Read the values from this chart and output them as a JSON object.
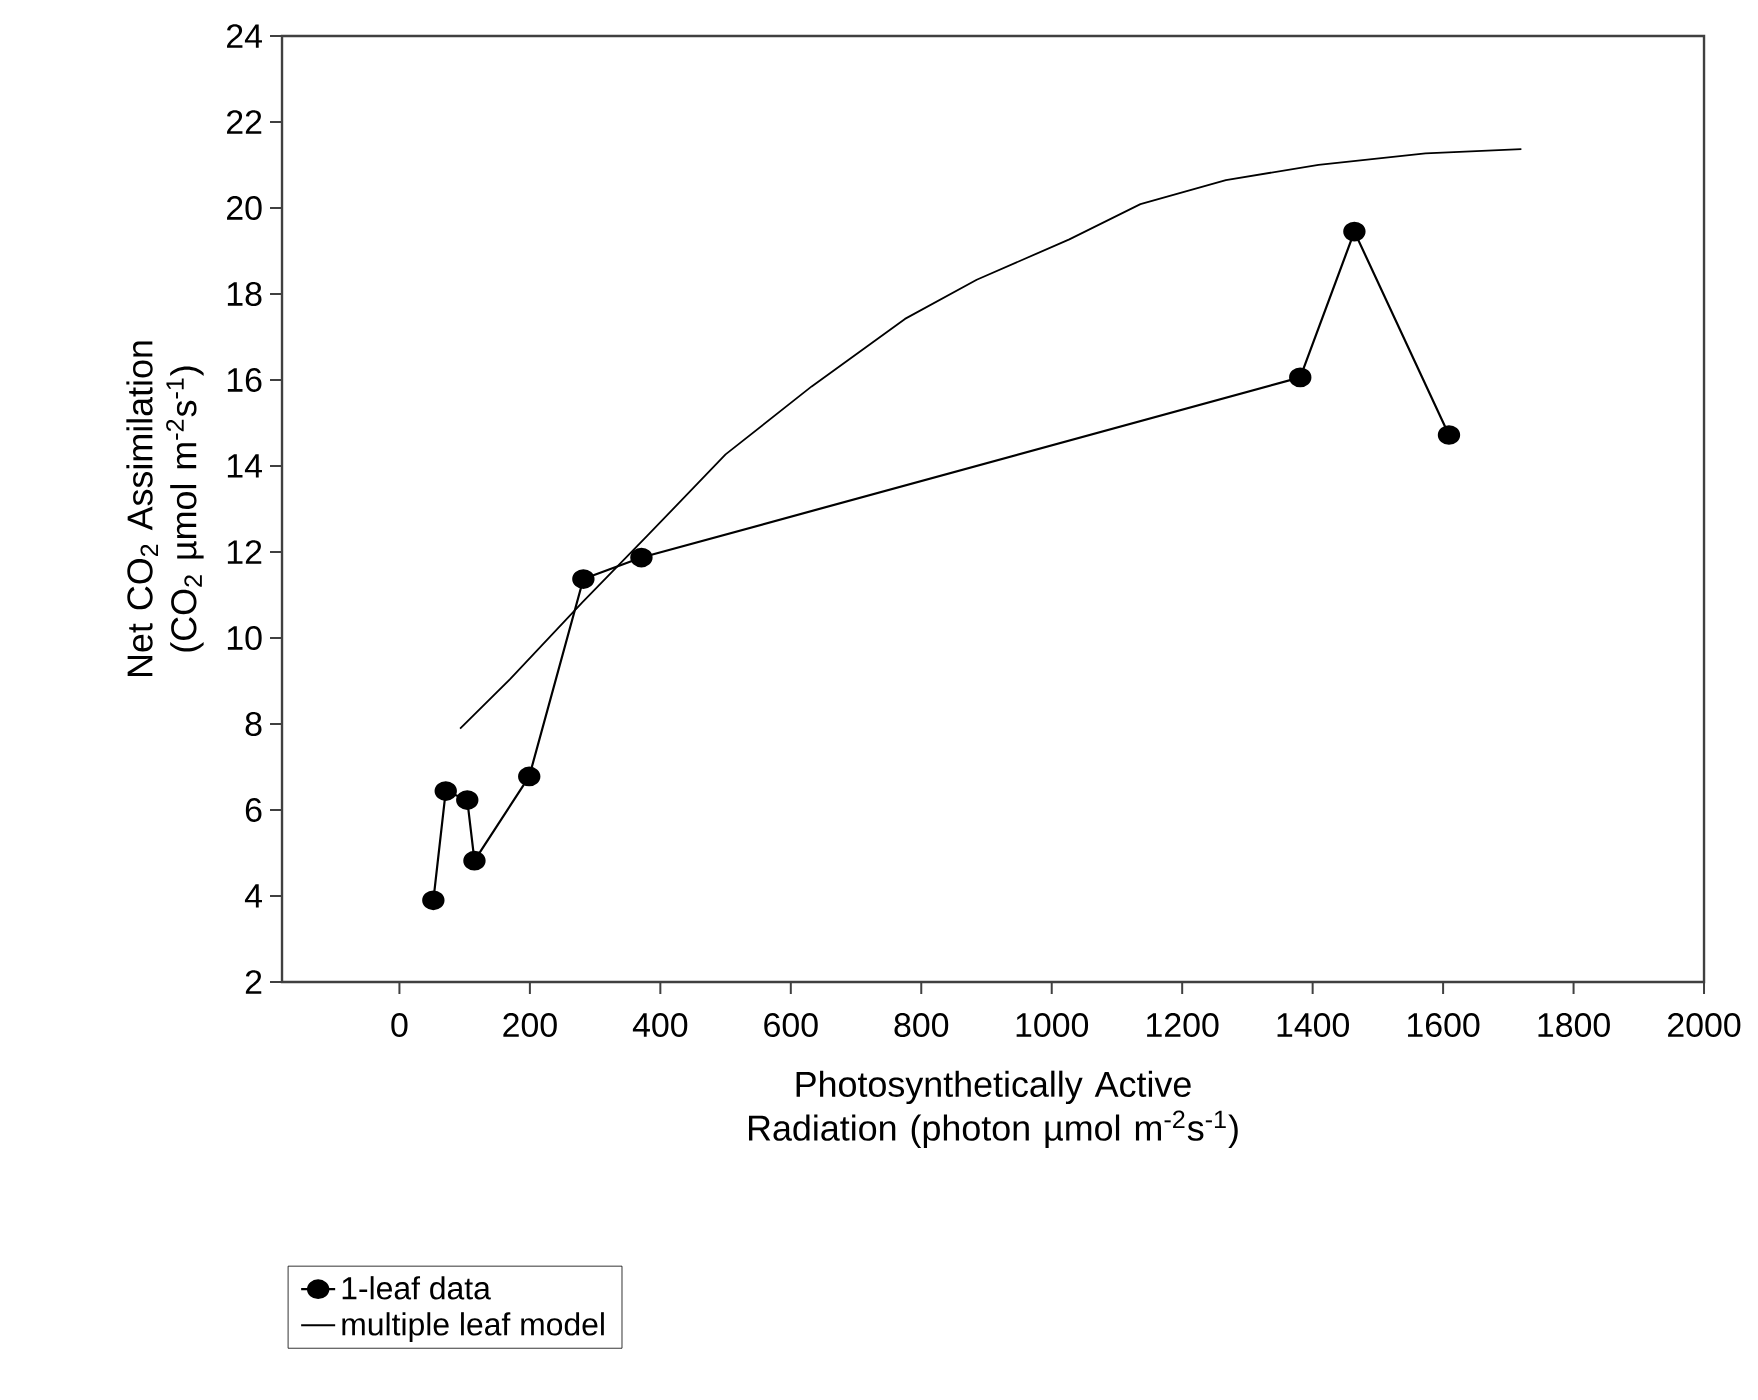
{
  "chart_data": {
    "type": "line",
    "xlabel": "Photosynthetically Active Radiation (photon µmol m$^{-2}$s$^{-1}$)",
    "ylabel": "Net CO$_{2}$ Assimilation (CO$_{2}$ µmol m$^{-2}$s$^{-1}$)",
    "xlim": [
      -180,
      2000
    ],
    "ylim": [
      2,
      24
    ],
    "xticks": [
      0,
      200,
      400,
      600,
      800,
      1000,
      1200,
      1400,
      1600,
      1800,
      2000
    ],
    "yticks": [
      2,
      4,
      6,
      8,
      10,
      12,
      14,
      16,
      18,
      20,
      22,
      24
    ],
    "legend": "bottom left",
    "grid": false,
    "series": [
      {
        "name": "1-leaf data",
        "color": "#000000",
        "marker": "circle",
        "line_style": "solid",
        "x": [
          52,
          71,
          104,
          115,
          199,
          282,
          371,
          1381,
          1464,
          1609
        ],
        "values": [
          3.9,
          6.44,
          6.23,
          4.82,
          6.78,
          11.37,
          11.87,
          16.06,
          19.45,
          14.72
        ]
      },
      {
        "name": "multiple leaf model",
        "color": "#000000",
        "marker": "none",
        "line_style": "solid",
        "x": [
          93,
          170,
          280,
          379,
          500,
          632,
          775,
          885,
          1027,
          1136,
          1267,
          1409,
          1573,
          1720
        ],
        "values": [
          7.89,
          9.05,
          10.82,
          12.36,
          14.27,
          15.85,
          17.42,
          18.33,
          19.27,
          20.09,
          20.65,
          21.0,
          21.27,
          21.37
        ]
      }
    ]
  }
}
